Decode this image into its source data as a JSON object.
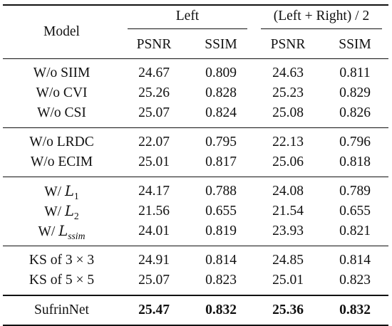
{
  "header": {
    "model": "Model",
    "group_left": "Left",
    "group_avg": "(Left + Right) / 2",
    "psnr": "PSNR",
    "ssim": "SSIM"
  },
  "groups": [
    {
      "rows": [
        {
          "model": "W/o SIIM",
          "l_psnr": "24.67",
          "l_ssim": "0.809",
          "a_psnr": "24.63",
          "a_ssim": "0.811"
        },
        {
          "model": "W/o CVI",
          "l_psnr": "25.26",
          "l_ssim": "0.828",
          "a_psnr": "25.23",
          "a_ssim": "0.829"
        },
        {
          "model": "W/o CSI",
          "l_psnr": "25.07",
          "l_ssim": "0.824",
          "a_psnr": "25.08",
          "a_ssim": "0.826"
        }
      ]
    },
    {
      "rows": [
        {
          "model": "W/o LRDC",
          "l_psnr": "22.07",
          "l_ssim": "0.795",
          "a_psnr": "22.13",
          "a_ssim": "0.796"
        },
        {
          "model": "W/o ECIM",
          "l_psnr": "25.01",
          "l_ssim": "0.817",
          "a_psnr": "25.06",
          "a_ssim": "0.818"
        }
      ]
    },
    {
      "rows": [
        {
          "model_prefix": "W/ ",
          "model_sym": "L",
          "model_sub": "1",
          "l_psnr": "24.17",
          "l_ssim": "0.788",
          "a_psnr": "24.08",
          "a_ssim": "0.789"
        },
        {
          "model_prefix": "W/ ",
          "model_sym": "L",
          "model_sub": "2",
          "l_psnr": "21.56",
          "l_ssim": "0.655",
          "a_psnr": "21.54",
          "a_ssim": "0.655"
        },
        {
          "model_prefix": "W/ ",
          "model_sym": "L",
          "model_sub": "ssim",
          "l_psnr": "24.01",
          "l_ssim": "0.819",
          "a_psnr": "23.93",
          "a_ssim": "0.821"
        }
      ]
    },
    {
      "rows": [
        {
          "model": "KS of 3 × 3",
          "l_psnr": "24.91",
          "l_ssim": "0.814",
          "a_psnr": "24.85",
          "a_ssim": "0.814"
        },
        {
          "model": "KS of 5 × 5",
          "l_psnr": "25.07",
          "l_ssim": "0.823",
          "a_psnr": "25.01",
          "a_ssim": "0.823"
        }
      ]
    }
  ],
  "final": {
    "model": "SufrinNet",
    "l_psnr": "25.47",
    "l_ssim": "0.832",
    "a_psnr": "25.36",
    "a_ssim": "0.832"
  }
}
